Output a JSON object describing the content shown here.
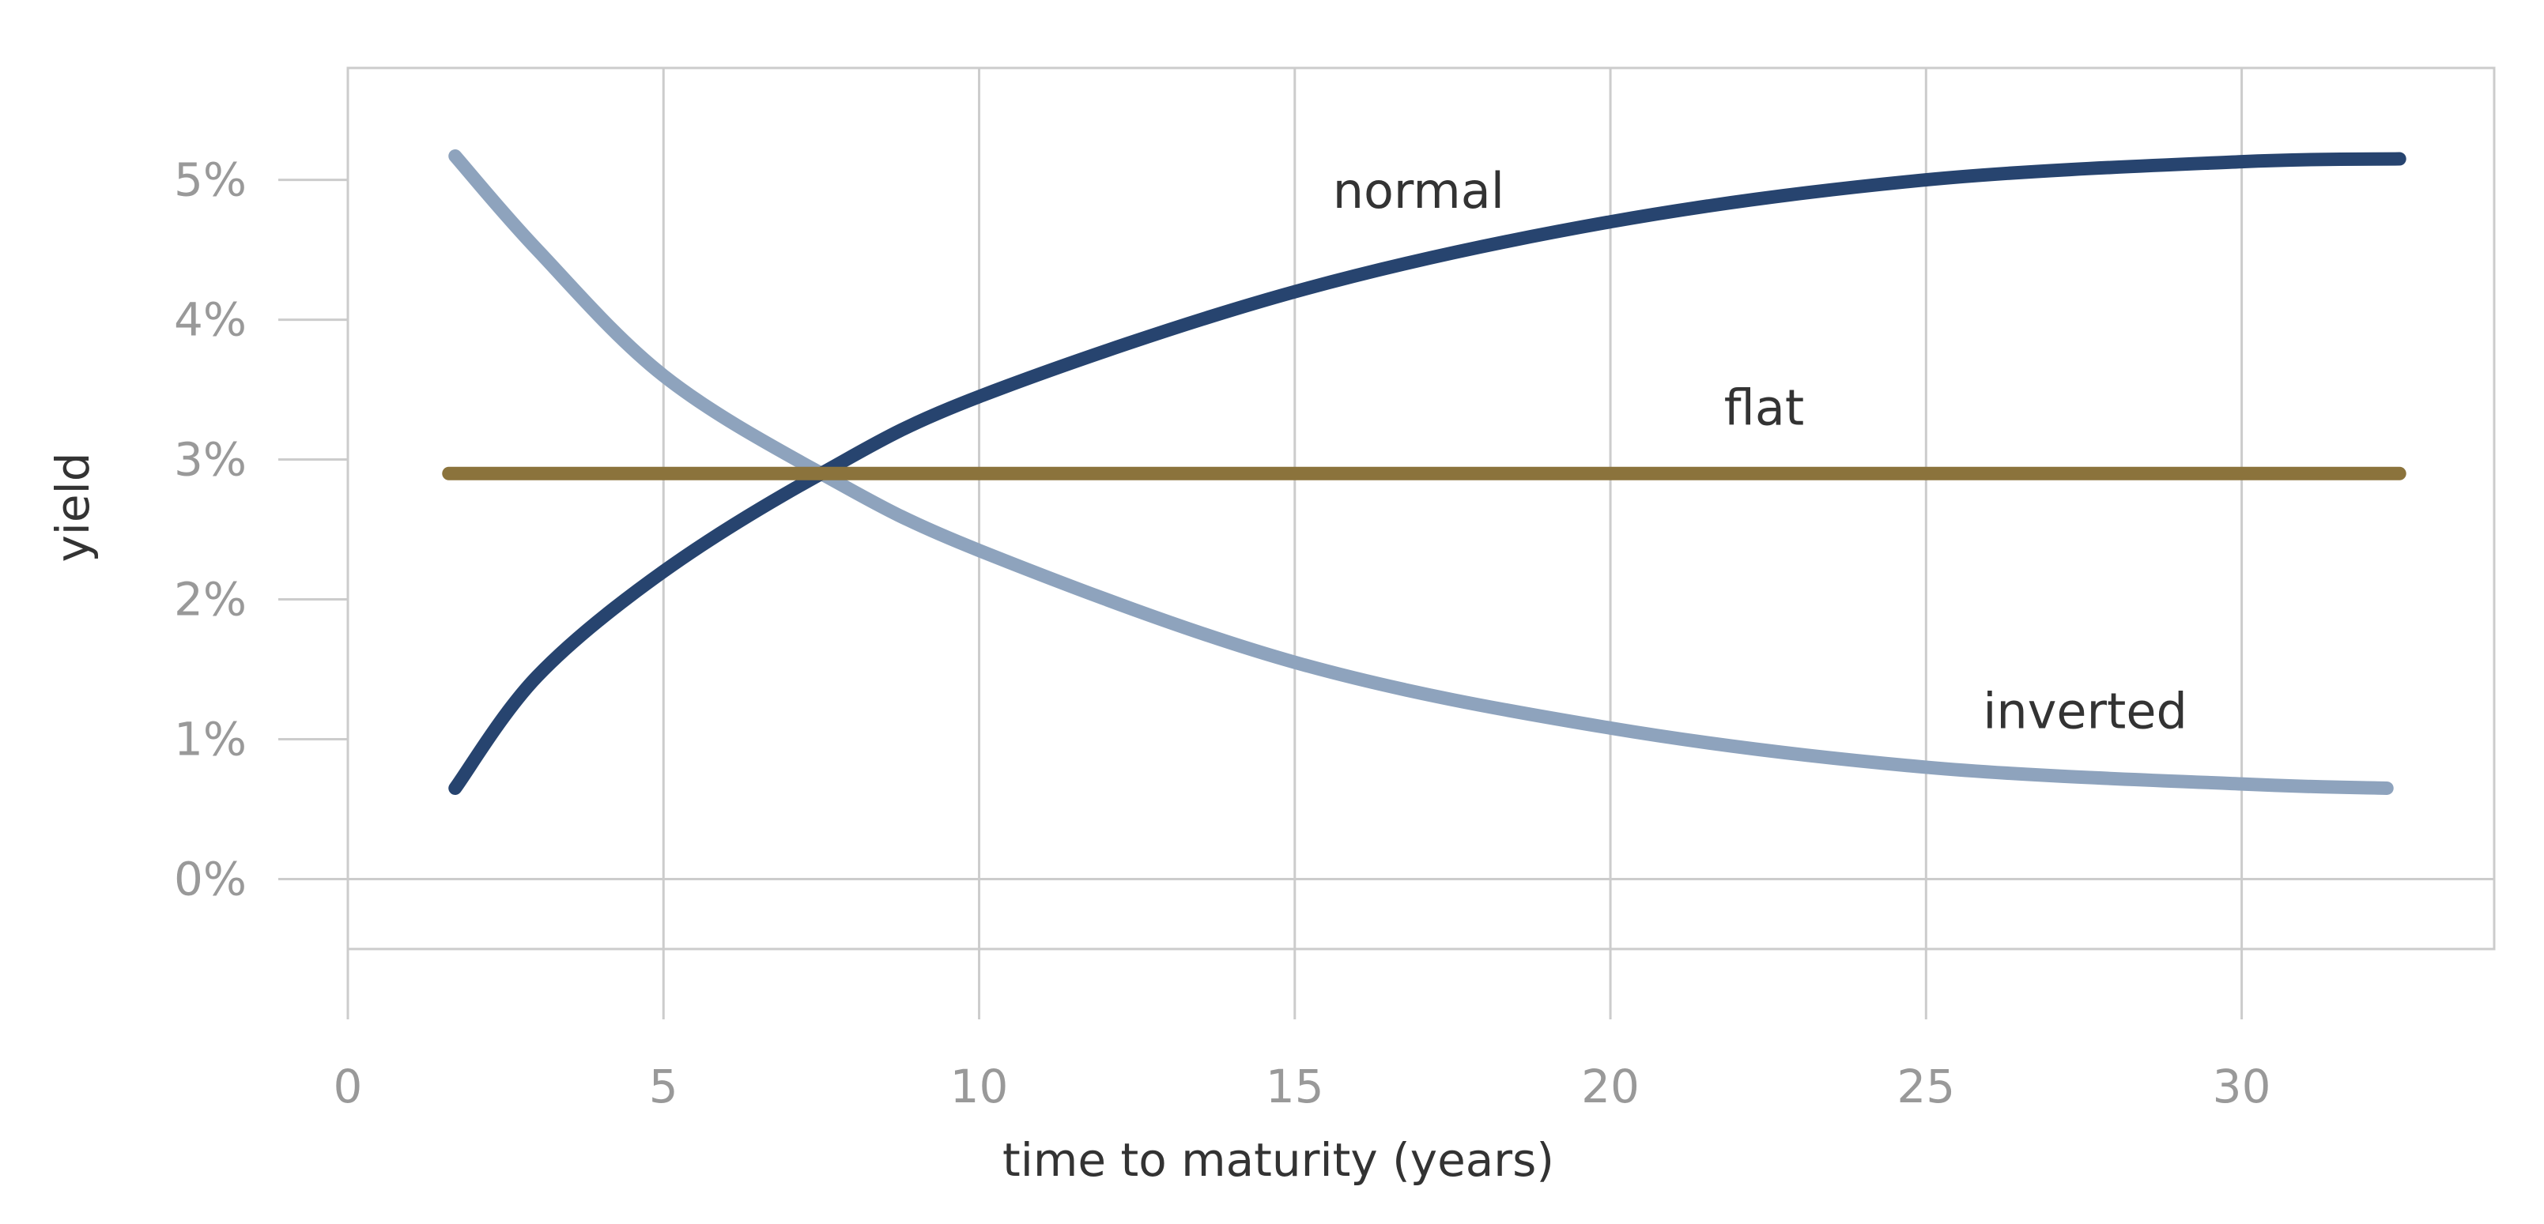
{
  "chart_data": {
    "type": "line",
    "title": "",
    "xlabel": "time to maturity (years)",
    "ylabel": "yield",
    "xlim": [
      0,
      34
    ],
    "ylim": [
      -0.5,
      5.8
    ],
    "x_ticks": [
      0,
      5,
      10,
      15,
      20,
      25,
      30
    ],
    "y_ticks": [
      {
        "value": 0,
        "label": "0%"
      },
      {
        "value": 1,
        "label": "1%"
      },
      {
        "value": 2,
        "label": "2%"
      },
      {
        "value": 3,
        "label": "3%"
      },
      {
        "value": 4,
        "label": "4%"
      },
      {
        "value": 5,
        "label": "5%"
      }
    ],
    "grid": "vertical",
    "legend": "none",
    "series": [
      {
        "name": "inverted",
        "color": "#8ea3bd",
        "x": [
          1.7,
          3,
          5,
          7.5,
          10,
          15,
          20,
          25,
          30,
          32.3
        ],
        "y": [
          5.17,
          4.5,
          3.6,
          2.9,
          2.35,
          1.55,
          1.08,
          0.8,
          0.68,
          0.65
        ]
      },
      {
        "name": "normal",
        "color": "#27446f",
        "x": [
          1.7,
          3,
          5,
          7.5,
          10,
          15,
          20,
          25,
          30,
          32.5
        ],
        "y": [
          0.65,
          1.45,
          2.2,
          2.9,
          3.45,
          4.2,
          4.7,
          5.0,
          5.13,
          5.15
        ]
      },
      {
        "name": "flat",
        "color": "#8b733c",
        "x": [
          1.6,
          32.5
        ],
        "y": [
          2.9,
          2.9
        ]
      }
    ],
    "annotations": [
      {
        "text": "normal",
        "series": "normal",
        "x": 15.6,
        "y": 4.8
      },
      {
        "text": "flat",
        "series": "flat",
        "x": 21.8,
        "y": 3.25
      },
      {
        "text": "inverted",
        "series": "inverted",
        "x": 25.9,
        "y": 1.08
      }
    ]
  }
}
